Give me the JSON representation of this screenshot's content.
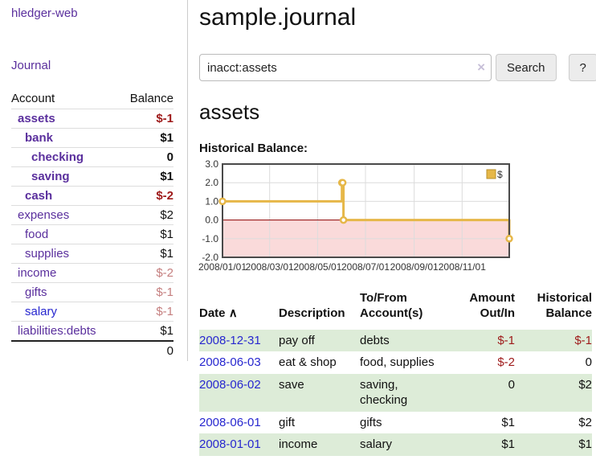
{
  "brand": "hledger-web",
  "nav": {
    "journal": "Journal"
  },
  "sidebar": {
    "account_header": "Account",
    "balance_header": "Balance",
    "accounts": [
      {
        "name": "assets",
        "balance": "$-1"
      },
      {
        "name": "bank",
        "balance": "$1"
      },
      {
        "name": "checking",
        "balance": "0"
      },
      {
        "name": "saving",
        "balance": "$1"
      },
      {
        "name": "cash",
        "balance": "$-2"
      },
      {
        "name": "expenses",
        "balance": "$2"
      },
      {
        "name": "food",
        "balance": "$1"
      },
      {
        "name": "supplies",
        "balance": "$1"
      },
      {
        "name": "income",
        "balance": "$-2"
      },
      {
        "name": "gifts",
        "balance": "$-1"
      },
      {
        "name": "salary",
        "balance": "$-1"
      },
      {
        "name": "liabilities:debts",
        "balance": "$1"
      }
    ],
    "total": "0"
  },
  "main": {
    "title": "sample.journal",
    "search": {
      "value": "inacct:assets",
      "clear_icon": "×",
      "search_button": "Search",
      "help_button": "?"
    },
    "account_heading": "assets",
    "chart_title": "Historical Balance:"
  },
  "chart_data": {
    "type": "line",
    "step": true,
    "title": "Historical Balance",
    "legend": "$",
    "x_range": [
      "2008-01-01",
      "2008-12-31"
    ],
    "ylim": [
      -2,
      3
    ],
    "y_ticks": [
      3,
      2,
      1,
      0,
      -1,
      -2
    ],
    "x_ticks": [
      {
        "date": "2008-01-01",
        "label": "2008/01/01"
      },
      {
        "date": "2008-03-01",
        "label": "2008/03/01"
      },
      {
        "date": "2008-05-01",
        "label": "2008/05/01"
      },
      {
        "date": "2008-07-01",
        "label": "2008/07/01"
      },
      {
        "date": "2008-09-01",
        "label": "2008/09/01"
      },
      {
        "date": "2008-11-01",
        "label": "2008/11/01"
      }
    ],
    "series": [
      {
        "name": "$",
        "points": [
          {
            "date": "2008-01-01",
            "value": 1
          },
          {
            "date": "2008-06-01",
            "value": 2
          },
          {
            "date": "2008-06-02",
            "value": 2
          },
          {
            "date": "2008-06-03",
            "value": 0
          },
          {
            "date": "2008-12-31",
            "value": -1
          }
        ]
      }
    ],
    "colors": {
      "line": "#e6b748",
      "legend_border": "#b8912b",
      "negative_fill": "#fadada",
      "zero_line": "#8b0000",
      "grid": "#dcdcdc",
      "border": "#4a4a4a"
    }
  },
  "register": {
    "headers": {
      "date": "Date",
      "description": "Description",
      "accounts": "To/From Account(s)",
      "amount": "Amount Out/In",
      "balance": "Historical Balance"
    },
    "sort_icon": "∧",
    "rows": [
      {
        "date": "2008-12-31",
        "description": "pay off",
        "accounts": "debts",
        "amount": "$-1",
        "balance": "$-1"
      },
      {
        "date": "2008-06-03",
        "description": "eat & shop",
        "accounts": "food, supplies",
        "amount": "$-2",
        "balance": "0"
      },
      {
        "date": "2008-06-02",
        "description": "save",
        "accounts": "saving, checking",
        "amount": "0",
        "balance": "$2"
      },
      {
        "date": "2008-06-01",
        "description": "gift",
        "accounts": "gifts",
        "amount": "$1",
        "balance": "$2"
      },
      {
        "date": "2008-01-01",
        "description": "income",
        "accounts": "salary",
        "amount": "$1",
        "balance": "$1"
      }
    ]
  }
}
